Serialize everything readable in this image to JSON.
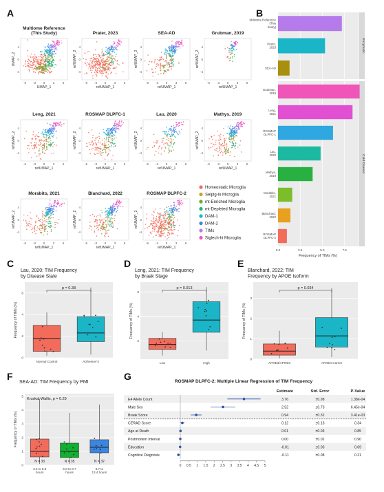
{
  "panel_letters": [
    "A",
    "B",
    "C",
    "D",
    "E",
    "F",
    "G"
  ],
  "colors": {
    "Homeostatic Microglia": "#f26b5b",
    "Selplg-lo Microglia": "#c9a227",
    "mt-Enriched Microglia": "#6aaa2a",
    "mt-Depleted Microglia": "#1db87a",
    "DAM-1": "#1bb5c8",
    "DAM-2": "#3a86e0",
    "TIMs": "#b57bea",
    "Siglech-hi Microglia": "#ef56b8"
  },
  "umap_panels": [
    {
      "title": "Multiome Reference\n(This Study)",
      "xlabel": "UMAP_1",
      "ylabel": "UMAP_2",
      "style": "multiome"
    },
    {
      "title": "Prater, 2023",
      "xlabel": "refUMAP_1",
      "ylabel": "refUMAP_2",
      "style": "dense"
    },
    {
      "title": "SEA-AD",
      "xlabel": "refUMAP_1",
      "ylabel": "refUMAP_2",
      "style": "mid"
    },
    {
      "title": "Grubman, 2019",
      "xlabel": "refUMAP_1",
      "ylabel": "refUMAP_2",
      "style": "sparse"
    },
    {
      "title": "Leng, 2021",
      "xlabel": "refUMAP_1",
      "ylabel": "refUMAP_2",
      "style": "mid"
    },
    {
      "title": "ROSMAP DLPFC-1",
      "xlabel": "refUMAP_1",
      "ylabel": "refUMAP_2",
      "style": "mid"
    },
    {
      "title": "Lau, 2020",
      "xlabel": "refUMAP_1",
      "ylabel": "refUMAP_2",
      "style": "sparse2"
    },
    {
      "title": "Mathys, 2019",
      "xlabel": "refUMAP_1",
      "ylabel": "refUMAP_2",
      "style": "mid"
    },
    {
      "title": "Morabito, 2021",
      "xlabel": "refUMAP_1",
      "ylabel": "refUMAP_2",
      "style": "mid"
    },
    {
      "title": "Blanchard, 2022",
      "xlabel": "refUMAP_1",
      "ylabel": "refUMAP_2",
      "style": "mid"
    },
    {
      "title": "ROSMAP DLPFC-2",
      "xlabel": "refUMAP_1",
      "ylabel": "refUMAP_2",
      "style": "dense"
    }
  ],
  "umap_xticks": [
    "-6",
    "-3",
    "0",
    "3",
    "6"
  ],
  "umap_yticks": [
    "4",
    "0",
    "-4"
  ],
  "legend_items": [
    "Homeostatic Microglia",
    "Selplg-lo Microglia",
    "mt-Enriched Microglia",
    "mt-Depleted Microglia",
    "DAM-1",
    "DAM-2",
    "TIMs",
    "Siglech-hi Microglia"
  ],
  "chart_data": [
    {
      "id": "B",
      "type": "bar",
      "orientation": "horizontal",
      "xlabel": "Frequency of TIMs (%)",
      "xlim": [
        0,
        9
      ],
      "xticks": [
        0,
        2.5,
        5,
        7.5
      ],
      "xtick_labels": [
        "0.0",
        "2.5",
        "5.0",
        "7.5"
      ],
      "facets": [
        {
          "name": "Enzymatic",
          "categories": [
            "Multiome Reference (This Study)",
            "Prater, 2023",
            "SEA-AD"
          ],
          "values": [
            7.2,
            5.3,
            1.3
          ],
          "colors": [
            "#b57bea",
            "#1bb5c8",
            "#a8900e"
          ]
        },
        {
          "name": "Cold Dounce",
          "categories": [
            "Grubman, 2019",
            "Leng, 2021",
            "ROSMAP DLPFC-1",
            "Lau, 2020",
            "Mathys, 2019",
            "Morabito, 2021",
            "Blanchard, 2022",
            "ROSMAP DLPFC-2"
          ],
          "values": [
            9.2,
            8.4,
            6.2,
            4.8,
            3.9,
            1.6,
            1.4,
            1.0
          ],
          "colors": [
            "#ef56b8",
            "#e14fd2",
            "#2fa7e0",
            "#1db8a0",
            "#28b040",
            "#7bbd2a",
            "#e8a020",
            "#f26b5b"
          ]
        }
      ]
    },
    {
      "id": "C",
      "type": "box",
      "title": "Lau, 2020: TIM Frequency\nby Disease State",
      "ylabel": "Frequency of TIMs (%)",
      "ylim": [
        0,
        7
      ],
      "yticks": [
        0,
        2,
        4,
        6
      ],
      "categories": [
        "Normal Control",
        "Alzheimer's"
      ],
      "boxes": [
        {
          "q1": 0.6,
          "median": 1.8,
          "q3": 3.0,
          "whisker_low": 0.2,
          "whisker_high": 4.2,
          "color": "#f26b5b"
        },
        {
          "q1": 1.5,
          "median": 2.3,
          "q3": 3.8,
          "whisker_low": 0.3,
          "whisker_high": 6.5,
          "color": "#1bb5c8"
        }
      ],
      "pvalue": "p = 0.38"
    },
    {
      "id": "D",
      "type": "box",
      "title": "Leng, 2021: TIM Frequency\nby Braak Stage",
      "ylabel": "Frequency of TIMs (%)",
      "ylim": [
        0.5,
        6.8
      ],
      "yticks": [
        2,
        4,
        6
      ],
      "categories": [
        "Low",
        "High"
      ],
      "boxes": [
        {
          "q1": 1.3,
          "median": 1.7,
          "q3": 2.2,
          "whisker_low": 0.8,
          "whisker_high": 2.7,
          "color": "#f26b5b"
        },
        {
          "q1": 2.7,
          "median": 3.7,
          "q3": 5.2,
          "whisker_low": 1.2,
          "whisker_high": 6.4,
          "color": "#1bb5c8"
        }
      ],
      "pvalue": "p = 0.013"
    },
    {
      "id": "E",
      "type": "box",
      "title": "Blanchard, 2022: TIM\nFrequency by APOE Isoform",
      "ylabel": "Frequency of TIMs (%)",
      "ylim": [
        0,
        3.8
      ],
      "yticks": [
        0,
        1,
        2,
        3
      ],
      "categories": [
        "APOE3/APOE3",
        "APOE4 Carrier"
      ],
      "boxes": [
        {
          "q1": 0.2,
          "median": 0.4,
          "q3": 0.75,
          "whisker_low": 0.05,
          "whisker_high": 1.4,
          "color": "#f26b5b"
        },
        {
          "q1": 0.6,
          "median": 1.15,
          "q3": 2.05,
          "whisker_low": 0.1,
          "whisker_high": 3.5,
          "color": "#1bb5c8"
        }
      ],
      "pvalue": "p = 0.034"
    },
    {
      "id": "F",
      "type": "box",
      "title": "SEA-AD: TIM Frequency by PMI",
      "ylabel": "Frequency of TIMs (%)",
      "ylim": [
        0,
        5.2
      ],
      "yticks": [
        0,
        1,
        2,
        3,
        4,
        5
      ],
      "categories": [
        "3.2 to 5.8\nhours",
        "5.8 to 8.7\nhours",
        "8.7 to\n13.4 hours"
      ],
      "counts": [
        "N = 33",
        "N = 35",
        "N = 32"
      ],
      "boxes": [
        {
          "q1": 0.6,
          "median": 1.0,
          "q3": 1.9,
          "whisker_low": 0.1,
          "whisker_high": 4.8,
          "color": "#f26b5b"
        },
        {
          "q1": 0.55,
          "median": 1.0,
          "q3": 1.6,
          "whisker_low": 0.1,
          "whisker_high": 3.8,
          "color": "#10b030"
        },
        {
          "q1": 0.9,
          "median": 1.3,
          "q3": 1.85,
          "whisker_low": 0.1,
          "whisker_high": 4.4,
          "color": "#3a86e0"
        }
      ],
      "annotation": "Kruskal-Wallis, p = 0.29"
    },
    {
      "id": "G",
      "type": "table",
      "title": "ROSMAP DLPFC-2: Multiple Linear Regression of TIM Frequency",
      "headers": [
        "Estimate",
        "Std. Error",
        "P-Value"
      ],
      "xlim": [
        0,
        5
      ],
      "xticks": [
        0,
        0.5,
        1,
        1.5,
        2,
        2.5,
        3,
        3.5,
        4,
        4.5,
        5
      ],
      "xtick_labels": [
        "0",
        "0.5",
        "1",
        "1.5",
        "2",
        "2.5",
        "3",
        "3.5",
        "4",
        "4.5",
        "5"
      ],
      "rows": [
        {
          "term": "E4 Allele Count",
          "estimate": "3.76",
          "se": "±0.98",
          "p": "1.38e-04",
          "est": 3.76,
          "err": 0.98
        },
        {
          "term": "Male Sex",
          "estimate": "2.52",
          "se": "±0.73",
          "p": "6.45e-04",
          "est": 2.52,
          "err": 0.73
        },
        {
          "term": "Braak Score",
          "estimate": "0.94",
          "se": "±0.32",
          "p": "3.41e-03",
          "est": 0.94,
          "err": 0.32
        },
        {
          "term": "CERAD Score",
          "estimate": "0.12",
          "se": "±0.13",
          "p": "0.34",
          "est": 0.12,
          "err": 0.13
        },
        {
          "term": "Age at Death",
          "estimate": "0.01",
          "se": "±0.03",
          "p": "0.85",
          "est": 0.01,
          "err": 0.03
        },
        {
          "term": "Postmortem Interval",
          "estimate": "0.00",
          "se": "±0.02",
          "p": "0.90",
          "est": 0.0,
          "err": 0.02
        },
        {
          "term": "Education",
          "estimate": "-0.01",
          "se": "±0.03",
          "p": "0.69",
          "est": -0.01,
          "err": 0.03
        },
        {
          "term": "Cognitive Diagnosis",
          "estimate": "-0.11",
          "se": "±0.08",
          "p": "0.21",
          "est": -0.11,
          "err": 0.08
        }
      ]
    }
  ]
}
